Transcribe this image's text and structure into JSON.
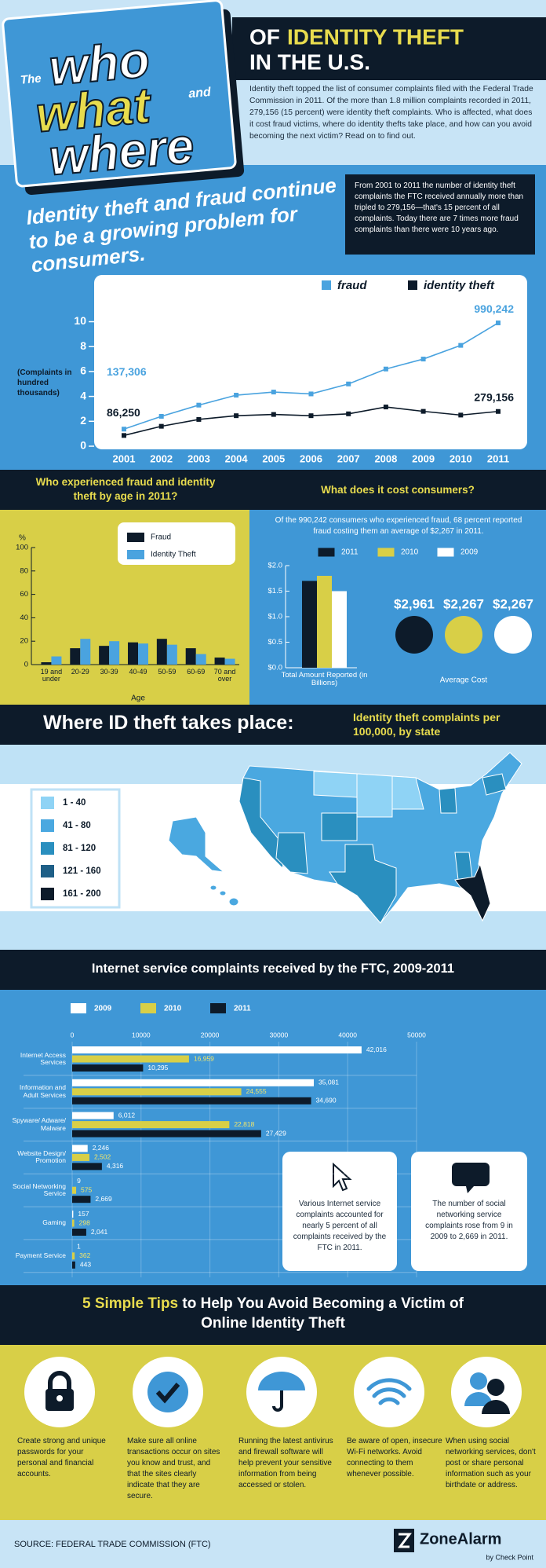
{
  "header": {
    "title_the": "The",
    "title_who": "who",
    "title_what": "what",
    "title_and": "and",
    "title_where": "where",
    "title_of": "OF",
    "title_identity_theft": "IDENTITY THEFT",
    "title_us": "IN THE U.S.",
    "intro": "Identity theft topped the list of consumer complaints filed with the Federal Trade Commission in 2011. Of the more than 1.8 million complaints recorded in 2011, 279,156 (15 percent) were identity theft complaints. Who is affected, what does it cost fraud victims, where do identity thefts take place, and how can you avoid becoming the next victim? Read on to find out."
  },
  "growth": {
    "headline": "Identity theft and fraud continue to be a growing problem for consumers.",
    "note": "From 2001 to 2011 the number of identity theft complaints the FTC received annually more than tripled to 279,156—that's 15 percent of all complaints. Today there are 7 times more fraud complaints than there were 10 years ago."
  },
  "chart_data": [
    {
      "type": "line",
      "ylabel": "(Complaints in hundred thousands)",
      "categories": [
        "2001",
        "2002",
        "2003",
        "2004",
        "2005",
        "2006",
        "2007",
        "2008",
        "2009",
        "2010",
        "2011"
      ],
      "ylim": [
        0,
        10.6
      ],
      "yticks": [
        0,
        2,
        4,
        6,
        8,
        10
      ],
      "series": [
        {
          "name": "fraud",
          "color": "#4aa3df",
          "values": [
            1.37306,
            2.4,
            3.3,
            4.1,
            4.35,
            4.2,
            5.0,
            6.2,
            7.0,
            8.1,
            9.90242
          ],
          "value_labels": [
            "137,306",
            null,
            null,
            null,
            null,
            null,
            null,
            null,
            null,
            null,
            "990,242"
          ]
        },
        {
          "name": "identity theft",
          "color": "#0d1b2a",
          "values": [
            0.8625,
            1.6,
            2.15,
            2.45,
            2.55,
            2.45,
            2.6,
            3.15,
            2.8,
            2.5,
            2.79156
          ],
          "value_labels": [
            "86,250",
            null,
            null,
            null,
            null,
            null,
            null,
            null,
            null,
            null,
            "279,156"
          ]
        }
      ]
    },
    {
      "type": "bar",
      "title": "Who experienced fraud and identity theft by age in 2011?",
      "ylabel": "%",
      "xlabel": "Age",
      "categories": [
        "19 and under",
        "20-29",
        "30-39",
        "40-49",
        "50-59",
        "60-69",
        "70 and over"
      ],
      "ylim": [
        0,
        100
      ],
      "yticks": [
        0,
        20,
        40,
        60,
        80,
        100
      ],
      "series": [
        {
          "name": "Fraud",
          "color": "#0d1b2a",
          "values": [
            2,
            14,
            16,
            19,
            22,
            14,
            6
          ]
        },
        {
          "name": "Identity Theft",
          "color": "#4aa3df",
          "values": [
            7,
            22,
            20,
            18,
            17,
            9,
            5
          ]
        }
      ]
    },
    {
      "type": "bar",
      "title": "What does it cost consumers?",
      "subtitle": "Of the 990,242 consumers who experienced fraud, 68 percent reported fraud costing them an average of $2,267 in 2011.",
      "categories": [
        "Total Amount Reported (in Billions)"
      ],
      "ylim": [
        0,
        2
      ],
      "yticks": [
        {
          "value": 0,
          "label": "$0.0"
        },
        {
          "value": 0.5,
          "label": "$0.5"
        },
        {
          "value": 1,
          "label": "$1.0"
        },
        {
          "value": 1.5,
          "label": "$1.5"
        },
        {
          "value": 2,
          "label": "$2.0"
        }
      ],
      "series": [
        {
          "name": "2011",
          "color": "#0d1b2a",
          "values": [
            1.7
          ]
        },
        {
          "name": "2010",
          "color": "#d8cf47",
          "values": [
            1.8
          ]
        },
        {
          "name": "2009",
          "color": "#ffffff",
          "values": [
            1.5
          ]
        }
      ],
      "average_cost": {
        "label": "Average Cost",
        "values": [
          2961,
          2267,
          2267
        ],
        "value_labels": [
          "$2,961",
          "$2,267",
          "$2,267"
        ]
      }
    },
    {
      "type": "hbar",
      "title": "Internet service complaints received by the FTC, 2009-2011",
      "categories": [
        "Internet Access Services",
        "Information and Adult Services",
        "Spyware/ Adware/ Malware",
        "Website Design/ Promotion",
        "Social Networking Service",
        "Gaming",
        "Payment Service"
      ],
      "xlim": [
        0,
        50000
      ],
      "xticks": [
        0,
        10000,
        20000,
        30000,
        40000,
        50000
      ],
      "series": [
        {
          "name": "2009",
          "color": "#ffffff",
          "values": [
            42016,
            35081,
            6012,
            2246,
            9,
            157,
            1
          ],
          "value_labels": [
            "42,016",
            "35,081",
            "6,012",
            "2,246",
            "9",
            "157",
            "1"
          ]
        },
        {
          "name": "2010",
          "color": "#d8cf47",
          "values": [
            16959,
            24555,
            22818,
            2502,
            575,
            298,
            362
          ],
          "value_labels": [
            "16,959",
            "24,555",
            "22,818",
            "2,502",
            "575",
            "298",
            "362"
          ]
        },
        {
          "name": "2011",
          "color": "#0d1b2a",
          "values": [
            10295,
            34690,
            27429,
            4316,
            2669,
            2041,
            443
          ],
          "value_labels": [
            "10,295",
            "34,690",
            "27,429",
            "4,316",
            "2,669",
            "2,041",
            "443"
          ]
        }
      ]
    }
  ],
  "map": {
    "title": "Where ID theft takes place:",
    "subtitle": "Identity theft complaints per 100,000, by state",
    "legend": [
      {
        "label": "1 - 40",
        "color": "#8fd3f5"
      },
      {
        "label": "41 - 80",
        "color": "#4aa8e0"
      },
      {
        "label": "81 - 120",
        "color": "#2a8fbf"
      },
      {
        "label": "121 - 160",
        "color": "#1e5f87"
      },
      {
        "label": "161 - 200",
        "color": "#0d1b2a"
      }
    ]
  },
  "internet_notes": [
    "Various Internet service complaints accounted for nearly 5 percent of all complaints received by the FTC in 2011.",
    "The number of social networking service complaints rose from 9 in 2009 to 2,669 in 2011."
  ],
  "tips": {
    "title_highlight": "5 Simple Tips",
    "title_rest": "to Help You Avoid Becoming a Victim of Online Identity Theft",
    "items": [
      "Create strong and unique passwords for your personal and financial accounts.",
      "Make sure all online transactions occur on sites you know and trust, and that the sites clearly indicate that they are secure.",
      "Running the latest antivirus and firewall software will help prevent your sensitive information from being accessed or stolen.",
      "Be aware of open, insecure Wi-Fi networks. Avoid connecting to them whenever possible.",
      "When using social networking services, don't post or share personal information such as your birthdate or address."
    ]
  },
  "footer": {
    "source": "SOURCE: FEDERAL TRADE COMMISSION (FTC)",
    "brand": "ZoneAlarm",
    "brand_sub": "by Check Point"
  }
}
